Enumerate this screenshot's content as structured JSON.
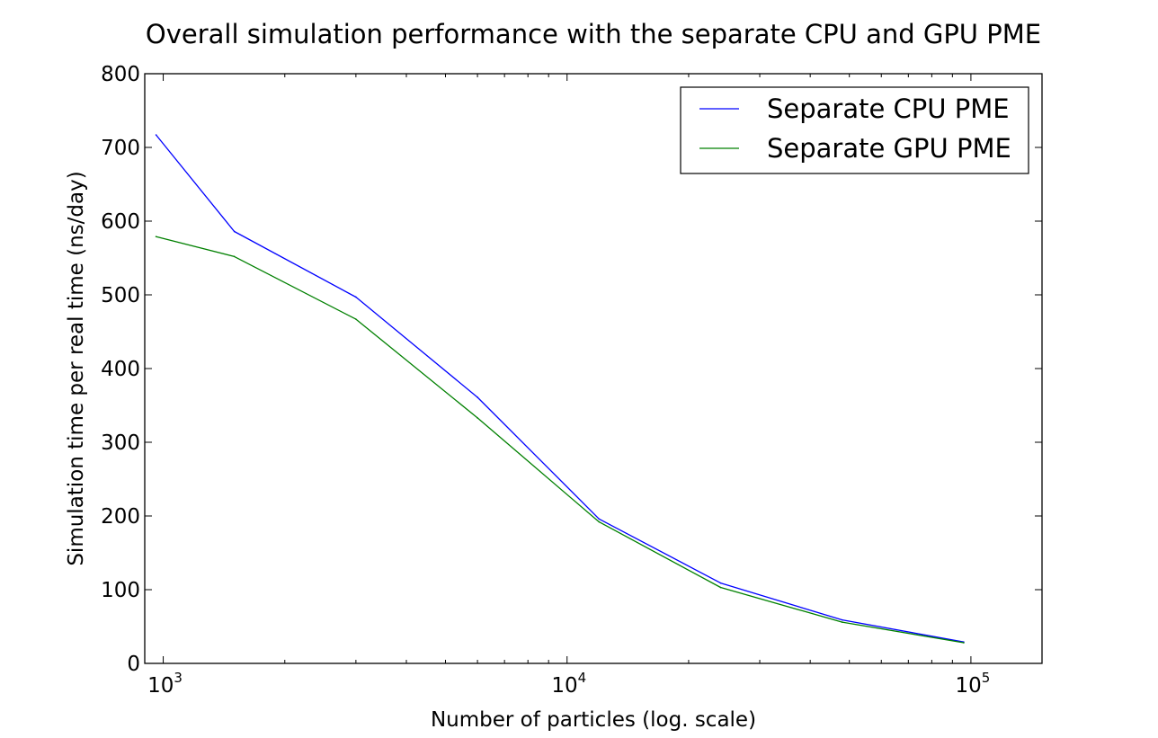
{
  "chart_data": {
    "type": "line",
    "title": "Overall simulation performance with the separate CPU and GPU PME",
    "xlabel": "Number of particles (log. scale)",
    "ylabel": "Simulation time per real time (ns/day)",
    "xscale": "log",
    "xlim": [
      900,
      150000
    ],
    "ylim": [
      0,
      800
    ],
    "yticks": [
      0,
      100,
      200,
      300,
      400,
      500,
      600,
      700,
      800
    ],
    "xticks": [
      {
        "value": 1000,
        "base": "10",
        "exp": "3"
      },
      {
        "value": 10000,
        "base": "10",
        "exp": "4"
      },
      {
        "value": 100000,
        "base": "10",
        "exp": "5"
      }
    ],
    "grid": false,
    "legend_position": "top-right",
    "x": [
      960,
      1500,
      3000,
      6000,
      12000,
      24000,
      48000,
      96000
    ],
    "series": [
      {
        "name": "Separate CPU PME",
        "color": "#0000ff",
        "values": [
          717,
          586,
          497,
          361,
          196,
          109,
          59,
          29
        ]
      },
      {
        "name": "Separate GPU PME",
        "color": "#008000",
        "values": [
          579,
          552,
          467,
          333,
          192,
          103,
          56,
          28
        ]
      }
    ]
  }
}
